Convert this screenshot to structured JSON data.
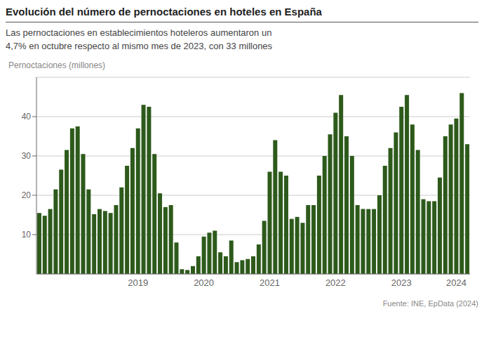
{
  "chart_data": {
    "type": "bar",
    "title": "Evolución del número de pernoctaciones en hoteles en España",
    "subtitle": "Las pernoctaciones en establecimientos hoteleros aumentaron un\n4,7% en octubre respecto al mismo mes de 2023, con 33 millones",
    "ylabel": "Pernoctaciones (millones)",
    "source": "Fuente: INE, EpData (2024)",
    "color": "#2d5a1b",
    "ylim": [
      0,
      50
    ],
    "yticks": [
      10,
      20,
      30,
      40
    ],
    "grid": true,
    "categories": [
      null,
      null,
      null,
      null,
      null,
      null,
      null,
      null,
      null,
      null,
      null,
      null,
      null,
      null,
      null,
      null,
      null,
      null,
      "2019",
      null,
      null,
      null,
      null,
      null,
      null,
      null,
      null,
      null,
      null,
      null,
      "2020",
      null,
      null,
      null,
      null,
      null,
      null,
      null,
      null,
      null,
      null,
      null,
      "2021",
      null,
      null,
      null,
      null,
      null,
      null,
      null,
      null,
      null,
      null,
      null,
      "2022",
      null,
      null,
      null,
      null,
      null,
      null,
      null,
      null,
      null,
      null,
      null,
      "2023",
      null,
      null,
      null,
      null,
      null,
      null,
      null,
      null,
      null,
      "2024",
      null,
      null
    ],
    "values": [
      15.5,
      14.8,
      16.5,
      21.5,
      26.5,
      31.5,
      37.0,
      37.5,
      30.5,
      21.5,
      15.2,
      16.5,
      16.0,
      15.5,
      17.5,
      22.0,
      27.5,
      32.0,
      37.0,
      43.0,
      42.5,
      30.5,
      20.5,
      17.0,
      17.5,
      8.0,
      1.2,
      1.0,
      2.0,
      4.5,
      9.5,
      10.5,
      11.0,
      5.5,
      4.5,
      8.5,
      3.0,
      3.5,
      3.8,
      4.5,
      7.5,
      13.5,
      26.0,
      34.0,
      26.0,
      25.0,
      14.0,
      14.5,
      13.0,
      17.5,
      17.5,
      25.0,
      30.0,
      35.5,
      41.0,
      45.5,
      35.0,
      30.0,
      17.5,
      16.5,
      16.5,
      16.5,
      20.0,
      27.5,
      32.0,
      36.0,
      42.5,
      45.5,
      38.0,
      31.5,
      19.0,
      18.5,
      18.5,
      24.5,
      35.0,
      38.0,
      39.5,
      46.0,
      33.0
    ]
  }
}
